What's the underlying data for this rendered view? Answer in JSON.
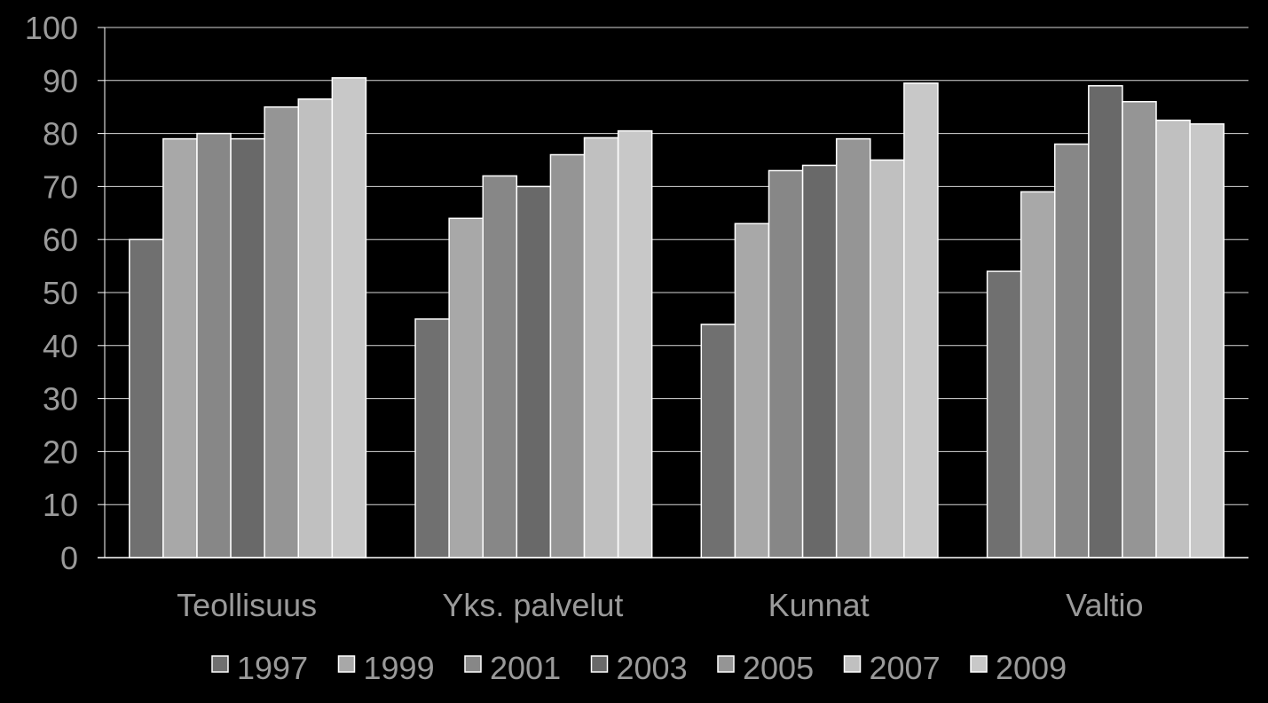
{
  "chart_data": {
    "type": "bar",
    "categories": [
      "Teollisuus",
      "Yks. palvelut",
      "Kunnat",
      "Valtio"
    ],
    "series": [
      {
        "name": "1997",
        "color": "#707070",
        "values": [
          60,
          45,
          44,
          54
        ]
      },
      {
        "name": "1999",
        "color": "#a8a8a8",
        "values": [
          79,
          64,
          63,
          69
        ]
      },
      {
        "name": "2001",
        "color": "#878787",
        "values": [
          80,
          72,
          73,
          78
        ]
      },
      {
        "name": "2003",
        "color": "#696969",
        "values": [
          79,
          70,
          74,
          89
        ]
      },
      {
        "name": "2005",
        "color": "#959595",
        "values": [
          85,
          76,
          79,
          86
        ]
      },
      {
        "name": "2007",
        "color": "#c0c0c0",
        "values": [
          86.5,
          79.2,
          75,
          82.5
        ]
      },
      {
        "name": "2009",
        "color": "#c8c8c8",
        "values": [
          90.5,
          80.5,
          89.5,
          81.8
        ]
      }
    ],
    "yticks": [
      "0",
      "10",
      "20",
      "30",
      "40",
      "50",
      "60",
      "70",
      "80",
      "90",
      "100"
    ],
    "ylim": [
      0,
      100
    ],
    "title": "",
    "xlabel": "",
    "ylabel": "",
    "grid": true,
    "legend_position": "bottom",
    "background_color": "#000000",
    "text_color": "#9a9a9a",
    "gridline_color": "#ffffff",
    "bar_border_color": "#ffffff"
  }
}
